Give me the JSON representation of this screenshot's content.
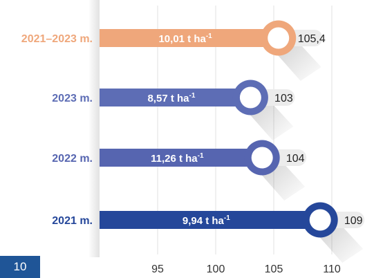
{
  "page": {
    "number": "10"
  },
  "colors": {
    "row_2021_2023": "#EFA77B",
    "row_2023": "#5D6DB5",
    "row_2022": "#5665B0",
    "row_2021": "#25479A",
    "value_bubble": "#ECECEC",
    "grid": "#E2E2E2",
    "tick_text": "#333333",
    "page_badge": "#1F5597"
  },
  "chart_data": {
    "type": "bar",
    "orientation": "horizontal",
    "title": "",
    "xlabel": "",
    "ylabel": "",
    "xlim": [
      90,
      113
    ],
    "xticks": [
      95,
      100,
      105,
      110
    ],
    "grid": true,
    "categories": [
      "2021–2023 m.",
      "2023 m.",
      "2022 m.",
      "2021 m."
    ],
    "values": [
      105.4,
      103,
      104,
      109
    ],
    "value_labels": [
      "105,4",
      "103",
      "104",
      "109"
    ],
    "bar_labels": [
      {
        "value": "10,01 t ha",
        "sup": "-1"
      },
      {
        "value": "8,57 t ha",
        "sup": "-1"
      },
      {
        "value": "11,26 t ha",
        "sup": "-1"
      },
      {
        "value": "9,94 t ha",
        "sup": "-1"
      }
    ]
  }
}
